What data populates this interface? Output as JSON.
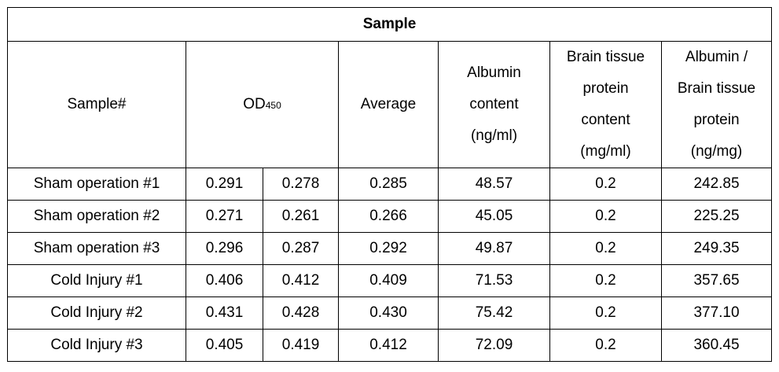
{
  "table": {
    "title": "Sample",
    "headers": {
      "sample": "Sample#",
      "od_main": "OD",
      "od_sub": "450",
      "average": "Average",
      "albumin": [
        "Albumin",
        "content",
        "(ng/ml)"
      ],
      "brain_protein": [
        "Brain tissue",
        "protein",
        "content",
        "(mg/ml)"
      ],
      "ratio": [
        "Albumin /",
        "Brain tissue",
        "protein",
        "(ng/mg)"
      ]
    },
    "rows": [
      {
        "sample": "Sham operation #1",
        "od1": "0.291",
        "od2": "0.278",
        "average": "0.285",
        "albumin": "48.57",
        "protein": "0.2",
        "ratio": "242.85"
      },
      {
        "sample": "Sham operation #2",
        "od1": "0.271",
        "od2": "0.261",
        "average": "0.266",
        "albumin": "45.05",
        "protein": "0.2",
        "ratio": "225.25"
      },
      {
        "sample": "Sham operation #3",
        "od1": "0.296",
        "od2": "0.287",
        "average": "0.292",
        "albumin": "49.87",
        "protein": "0.2",
        "ratio": "249.35"
      },
      {
        "sample": "Cold Injury #1",
        "od1": "0.406",
        "od2": "0.412",
        "average": "0.409",
        "albumin": "71.53",
        "protein": "0.2",
        "ratio": "357.65"
      },
      {
        "sample": "Cold Injury #2",
        "od1": "0.431",
        "od2": "0.428",
        "average": "0.430",
        "albumin": "75.42",
        "protein": "0.2",
        "ratio": "377.10"
      },
      {
        "sample": "Cold Injury #3",
        "od1": "0.405",
        "od2": "0.419",
        "average": "0.412",
        "albumin": "72.09",
        "protein": "0.2",
        "ratio": "360.45"
      }
    ]
  }
}
